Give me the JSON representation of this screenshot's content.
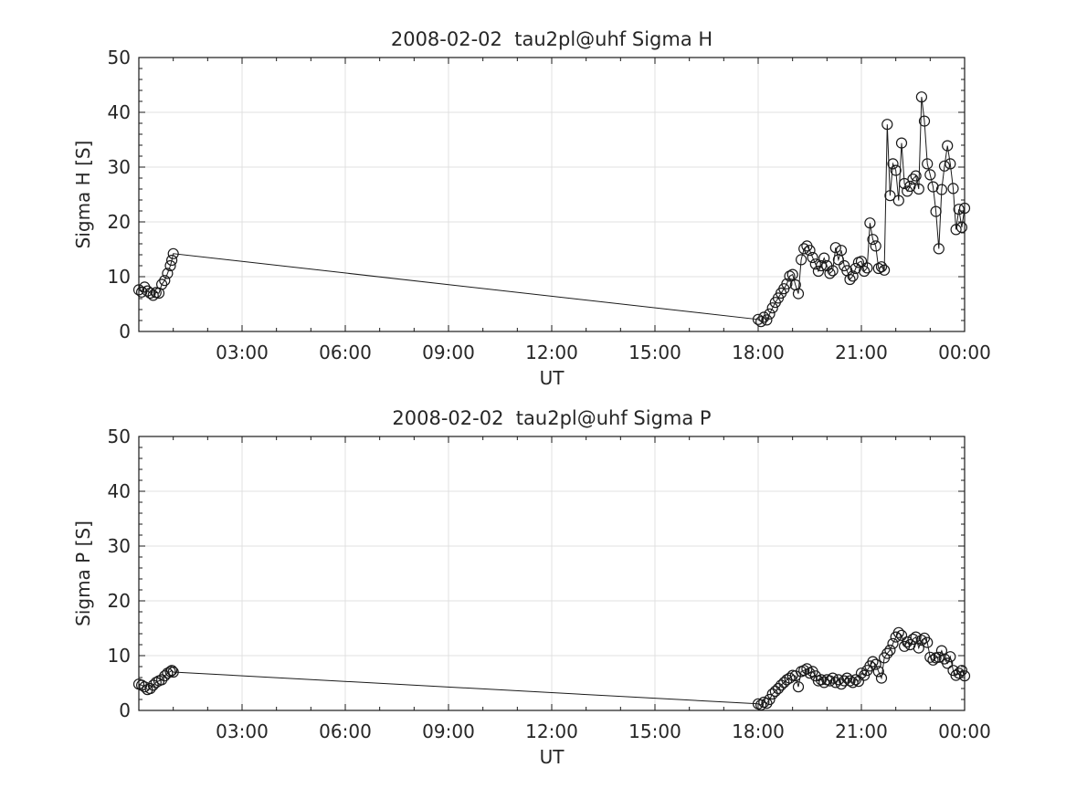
{
  "figure": {
    "background": "#ffffff",
    "axis_color": "#1a1a1a",
    "grid_color": "#e0e0e0",
    "text_color": "#262626",
    "data_color": "#1a1a1a"
  },
  "chart_data": [
    {
      "type": "line",
      "title": "2008-02-02  tau2pl@uhf Sigma H",
      "xlabel": "UT",
      "ylabel": "Sigma H [S]",
      "xlim": [
        0,
        24
      ],
      "ylim": [
        0,
        50
      ],
      "grid": true,
      "legend": null,
      "marker": "open-circle",
      "xticks": {
        "major": [
          3,
          6,
          9,
          12,
          15,
          18,
          21,
          24
        ],
        "labels": [
          "03:00",
          "06:00",
          "09:00",
          "12:00",
          "15:00",
          "18:00",
          "21:00",
          "00:00"
        ],
        "minor_step": 1
      },
      "yticks": {
        "major": [
          0,
          10,
          20,
          30,
          40,
          50
        ],
        "labels": [
          "0",
          "10",
          "20",
          "30",
          "40",
          "50"
        ],
        "minor_step": 2
      },
      "series": [
        {
          "name": "Sigma H",
          "points": [
            [
              0,
              7.6
            ],
            [
              0.083,
              7.2
            ],
            [
              0.167,
              8.1
            ],
            [
              0.25,
              7.4
            ],
            [
              0.333,
              7.0
            ],
            [
              0.417,
              6.6
            ],
            [
              0.5,
              7.1
            ],
            [
              0.583,
              7.0
            ],
            [
              0.667,
              8.6
            ],
            [
              0.75,
              9.3
            ],
            [
              0.833,
              10.6
            ],
            [
              0.917,
              12.0
            ],
            [
              0.958,
              13.0
            ],
            [
              1.0,
              14.2
            ],
            [
              18,
              2.2
            ],
            [
              18.083,
              1.8
            ],
            [
              18.167,
              2.6
            ],
            [
              18.25,
              2.1
            ],
            [
              18.333,
              3.2
            ],
            [
              18.417,
              4.3
            ],
            [
              18.5,
              5.3
            ],
            [
              18.583,
              6.1
            ],
            [
              18.667,
              7.0
            ],
            [
              18.75,
              7.8
            ],
            [
              18.833,
              8.7
            ],
            [
              18.917,
              10.1
            ],
            [
              19,
              10.4
            ],
            [
              19.083,
              8.5
            ],
            [
              19.167,
              6.9
            ],
            [
              19.25,
              13.1
            ],
            [
              19.333,
              15.1
            ],
            [
              19.417,
              15.6
            ],
            [
              19.5,
              14.8
            ],
            [
              19.583,
              13.5
            ],
            [
              19.667,
              12.3
            ],
            [
              19.75,
              11.0
            ],
            [
              19.833,
              12.0
            ],
            [
              19.917,
              13.4
            ],
            [
              20,
              12.0
            ],
            [
              20.083,
              10.6
            ],
            [
              20.167,
              11.1
            ],
            [
              20.25,
              15.3
            ],
            [
              20.333,
              13.1
            ],
            [
              20.417,
              14.8
            ],
            [
              20.5,
              12.0
            ],
            [
              20.583,
              11.1
            ],
            [
              20.667,
              9.5
            ],
            [
              20.75,
              10.1
            ],
            [
              20.833,
              11.5
            ],
            [
              20.917,
              12.6
            ],
            [
              21,
              12.8
            ],
            [
              21.083,
              11.0
            ],
            [
              21.167,
              11.6
            ],
            [
              21.25,
              19.8
            ],
            [
              21.333,
              16.8
            ],
            [
              21.417,
              15.6
            ],
            [
              21.5,
              11.5
            ],
            [
              21.583,
              11.8
            ],
            [
              21.667,
              11.2
            ],
            [
              21.75,
              37.8
            ],
            [
              21.833,
              24.8
            ],
            [
              21.917,
              30.6
            ],
            [
              22,
              29.4
            ],
            [
              22.083,
              23.9
            ],
            [
              22.167,
              34.4
            ],
            [
              22.25,
              27.0
            ],
            [
              22.333,
              25.6
            ],
            [
              22.417,
              26.5
            ],
            [
              22.5,
              27.8
            ],
            [
              22.583,
              28.4
            ],
            [
              22.667,
              26.0
            ],
            [
              22.75,
              42.8
            ],
            [
              22.833,
              38.4
            ],
            [
              22.917,
              30.6
            ],
            [
              23,
              28.6
            ],
            [
              23.083,
              26.4
            ],
            [
              23.167,
              21.9
            ],
            [
              23.25,
              15.1
            ],
            [
              23.333,
              25.9
            ],
            [
              23.417,
              30.2
            ],
            [
              23.5,
              33.9
            ],
            [
              23.583,
              30.6
            ],
            [
              23.667,
              26.1
            ],
            [
              23.75,
              18.6
            ],
            [
              23.833,
              22.3
            ],
            [
              23.917,
              19.0
            ],
            [
              24,
              22.5
            ]
          ]
        }
      ]
    },
    {
      "type": "line",
      "title": "2008-02-02  tau2pl@uhf Sigma P",
      "xlabel": "UT",
      "ylabel": "Sigma P [S]",
      "xlim": [
        0,
        24
      ],
      "ylim": [
        0,
        50
      ],
      "grid": true,
      "legend": null,
      "marker": "open-circle",
      "xticks": {
        "major": [
          3,
          6,
          9,
          12,
          15,
          18,
          21,
          24
        ],
        "labels": [
          "03:00",
          "06:00",
          "09:00",
          "12:00",
          "15:00",
          "18:00",
          "21:00",
          "00:00"
        ],
        "minor_step": 1
      },
      "yticks": {
        "major": [
          0,
          10,
          20,
          30,
          40,
          50
        ],
        "labels": [
          "0",
          "10",
          "20",
          "30",
          "40",
          "50"
        ],
        "minor_step": 2
      },
      "series": [
        {
          "name": "Sigma P",
          "points": [
            [
              0,
              4.8
            ],
            [
              0.083,
              4.6
            ],
            [
              0.167,
              4.3
            ],
            [
              0.25,
              3.8
            ],
            [
              0.333,
              4.0
            ],
            [
              0.417,
              4.6
            ],
            [
              0.5,
              5.1
            ],
            [
              0.583,
              5.4
            ],
            [
              0.667,
              5.6
            ],
            [
              0.75,
              6.3
            ],
            [
              0.833,
              6.8
            ],
            [
              0.917,
              7.1
            ],
            [
              0.958,
              7.3
            ],
            [
              1.0,
              7.0
            ],
            [
              18,
              1.2
            ],
            [
              18.083,
              1.0
            ],
            [
              18.167,
              1.5
            ],
            [
              18.25,
              1.3
            ],
            [
              18.333,
              2.0
            ],
            [
              18.417,
              3.0
            ],
            [
              18.5,
              3.5
            ],
            [
              18.583,
              4.0
            ],
            [
              18.667,
              4.6
            ],
            [
              18.75,
              5.1
            ],
            [
              18.833,
              5.6
            ],
            [
              18.917,
              5.9
            ],
            [
              19,
              6.4
            ],
            [
              19.083,
              6.3
            ],
            [
              19.167,
              4.3
            ],
            [
              19.25,
              7.1
            ],
            [
              19.333,
              7.3
            ],
            [
              19.417,
              7.6
            ],
            [
              19.5,
              6.8
            ],
            [
              19.583,
              7.1
            ],
            [
              19.667,
              6.3
            ],
            [
              19.75,
              5.4
            ],
            [
              19.833,
              5.6
            ],
            [
              19.917,
              5.1
            ],
            [
              20,
              5.6
            ],
            [
              20.083,
              5.4
            ],
            [
              20.167,
              5.9
            ],
            [
              20.25,
              5.1
            ],
            [
              20.333,
              5.6
            ],
            [
              20.417,
              4.8
            ],
            [
              20.5,
              5.4
            ],
            [
              20.583,
              5.9
            ],
            [
              20.667,
              5.4
            ],
            [
              20.75,
              5.1
            ],
            [
              20.833,
              5.6
            ],
            [
              20.917,
              5.3
            ],
            [
              21,
              6.8
            ],
            [
              21.083,
              6.4
            ],
            [
              21.167,
              7.3
            ],
            [
              21.25,
              8.1
            ],
            [
              21.333,
              8.9
            ],
            [
              21.417,
              8.4
            ],
            [
              21.5,
              7.1
            ],
            [
              21.583,
              5.9
            ],
            [
              21.667,
              9.6
            ],
            [
              21.75,
              10.4
            ],
            [
              21.833,
              11.0
            ],
            [
              21.917,
              12.2
            ],
            [
              22,
              13.4
            ],
            [
              22.083,
              14.2
            ],
            [
              22.167,
              13.7
            ],
            [
              22.25,
              11.7
            ],
            [
              22.333,
              12.5
            ],
            [
              22.417,
              12.0
            ],
            [
              22.5,
              13.0
            ],
            [
              22.583,
              13.4
            ],
            [
              22.667,
              11.4
            ],
            [
              22.75,
              12.8
            ],
            [
              22.833,
              13.2
            ],
            [
              22.917,
              12.4
            ],
            [
              23,
              9.7
            ],
            [
              23.083,
              9.2
            ],
            [
              23.167,
              9.6
            ],
            [
              23.25,
              9.7
            ],
            [
              23.333,
              10.9
            ],
            [
              23.417,
              9.4
            ],
            [
              23.5,
              8.6
            ],
            [
              23.583,
              9.8
            ],
            [
              23.667,
              7.3
            ],
            [
              23.75,
              6.4
            ],
            [
              23.833,
              6.8
            ],
            [
              23.917,
              7.3
            ],
            [
              24,
              6.3
            ]
          ]
        }
      ]
    }
  ]
}
